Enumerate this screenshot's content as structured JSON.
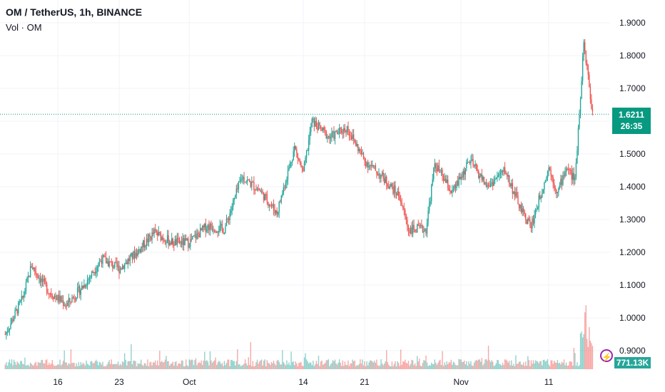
{
  "header": {
    "title": "OM / TetherUS, 1h, BINANCE",
    "volume_label": "Vol · OM"
  },
  "price_tag": {
    "price": "1.6211",
    "countdown": "26:35"
  },
  "volume_tag": {
    "value": "771.13K"
  },
  "colors": {
    "up": "#26a69a",
    "down": "#ef5350",
    "tag": "#089981",
    "flash_icon": "#9c27b0"
  },
  "chart_data": {
    "type": "candlestick",
    "symbol": "OM / TetherUS",
    "interval": "1h",
    "exchange": "BINANCE",
    "y_ticks": [
      "1.9000",
      "1.8000",
      "1.7000",
      "1.6000",
      "1.5000",
      "1.4000",
      "1.3000",
      "1.2000",
      "1.1000",
      "1.0000",
      "0.9000"
    ],
    "y_range": [
      0.88,
      1.96
    ],
    "x_ticks": [
      "16",
      "23",
      "Oct",
      "14",
      "21",
      "Nov",
      "11"
    ],
    "last_price": 1.6211,
    "last_volume": "771.13K",
    "price_path_approx": [
      {
        "date": "2024-09-10",
        "price": 0.95
      },
      {
        "date": "2024-09-12",
        "price": 1.06
      },
      {
        "date": "2024-09-13",
        "price": 1.16
      },
      {
        "date": "2024-09-15",
        "price": 1.08
      },
      {
        "date": "2024-09-17",
        "price": 1.04
      },
      {
        "date": "2024-09-19",
        "price": 1.1
      },
      {
        "date": "2024-09-21",
        "price": 1.18
      },
      {
        "date": "2024-09-23",
        "price": 1.15
      },
      {
        "date": "2024-09-25",
        "price": 1.2
      },
      {
        "date": "2024-09-27",
        "price": 1.26
      },
      {
        "date": "2024-09-29",
        "price": 1.23
      },
      {
        "date": "2024-10-01",
        "price": 1.23
      },
      {
        "date": "2024-10-03",
        "price": 1.28
      },
      {
        "date": "2024-10-05",
        "price": 1.27
      },
      {
        "date": "2024-10-07",
        "price": 1.43
      },
      {
        "date": "2024-10-09",
        "price": 1.39
      },
      {
        "date": "2024-10-11",
        "price": 1.32
      },
      {
        "date": "2024-10-13",
        "price": 1.52
      },
      {
        "date": "2024-10-14",
        "price": 1.44
      },
      {
        "date": "2024-10-15",
        "price": 1.6
      },
      {
        "date": "2024-10-17",
        "price": 1.55
      },
      {
        "date": "2024-10-19",
        "price": 1.58
      },
      {
        "date": "2024-10-21",
        "price": 1.48
      },
      {
        "date": "2024-10-23",
        "price": 1.43
      },
      {
        "date": "2024-10-25",
        "price": 1.37
      },
      {
        "date": "2024-10-26",
        "price": 1.27
      },
      {
        "date": "2024-10-28",
        "price": 1.27
      },
      {
        "date": "2024-10-29",
        "price": 1.47
      },
      {
        "date": "2024-10-31",
        "price": 1.38
      },
      {
        "date": "2024-11-02",
        "price": 1.48
      },
      {
        "date": "2024-11-04",
        "price": 1.4
      },
      {
        "date": "2024-11-06",
        "price": 1.45
      },
      {
        "date": "2024-11-08",
        "price": 1.32
      },
      {
        "date": "2024-11-09",
        "price": 1.28
      },
      {
        "date": "2024-11-11",
        "price": 1.46
      },
      {
        "date": "2024-11-12",
        "price": 1.38
      },
      {
        "date": "2024-11-13",
        "price": 1.46
      },
      {
        "date": "2024-11-14",
        "price": 1.42
      },
      {
        "date": "2024-11-15",
        "price": 1.84
      },
      {
        "date": "2024-11-16",
        "price": 1.62
      }
    ]
  }
}
